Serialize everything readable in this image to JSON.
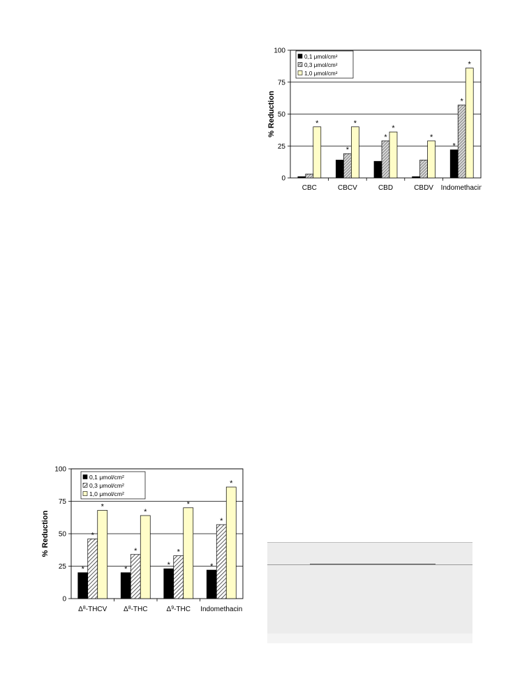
{
  "chart_data": [
    {
      "id": "chart-top",
      "type": "bar",
      "categories": [
        "CBC",
        "CBCV",
        "CBD",
        "CBDV",
        "Indomethacin"
      ],
      "series": [
        {
          "name": "0,1 μmol/cm²",
          "values": [
            1,
            14,
            13,
            1,
            22
          ],
          "sig": [
            false,
            false,
            false,
            false,
            true
          ],
          "fill": "solid-black"
        },
        {
          "name": "0,3 μmol/cm²",
          "values": [
            3,
            19,
            29,
            14,
            57
          ],
          "sig": [
            false,
            true,
            true,
            false,
            true
          ],
          "fill": "hatch-dense"
        },
        {
          "name": "1,0 μmol/cm²",
          "values": [
            40,
            40,
            36,
            29,
            86
          ],
          "sig": [
            true,
            true,
            true,
            true,
            true
          ],
          "fill": "light-yellow"
        }
      ],
      "ylabel": "% Reduction",
      "xlabel": "",
      "ylim": [
        0,
        100
      ],
      "yticks": [
        0,
        25,
        50,
        75,
        100
      ],
      "grid": "horizontal",
      "legend": "top-left",
      "marker": "*"
    },
    {
      "id": "chart-bottom",
      "type": "bar",
      "categories": [
        "Δ8-THCV",
        "Δ8-THC",
        "Δ9-THC",
        "Indomethacin"
      ],
      "category_labels": [
        {
          "prefix": "Δ",
          "sup": "8",
          "suffix": "-THCV"
        },
        {
          "prefix": "Δ",
          "sup": "8",
          "suffix": "-THC"
        },
        {
          "prefix": "Δ",
          "sup": "9",
          "suffix": "-THC"
        },
        {
          "prefix": "",
          "sup": "",
          "suffix": "Indomethacin"
        }
      ],
      "series": [
        {
          "name": "0,1 μmol/cm²",
          "values": [
            20,
            20,
            23,
            22
          ],
          "sig": [
            true,
            true,
            true,
            true
          ],
          "fill": "solid-black"
        },
        {
          "name": "0,3 μmol/cm²",
          "values": [
            46,
            34,
            33,
            57
          ],
          "sig": [
            true,
            true,
            true,
            true
          ],
          "fill": "hatch-diagonal"
        },
        {
          "name": "1,0 μmol/cm²",
          "values": [
            68,
            64,
            70,
            86
          ],
          "sig": [
            true,
            true,
            true,
            true
          ],
          "fill": "light-yellow"
        }
      ],
      "ylabel": "% Reduction",
      "xlabel": "",
      "ylim": [
        0,
        100
      ],
      "yticks": [
        0,
        25,
        50,
        75,
        100
      ],
      "grid": "horizontal",
      "legend": "top-left",
      "marker": "*"
    }
  ],
  "colors": {
    "series_black": "#000000",
    "series_yellow": "#fffdc8",
    "axis": "#000000",
    "grid": "#000000",
    "table_bg": "#ececec"
  }
}
